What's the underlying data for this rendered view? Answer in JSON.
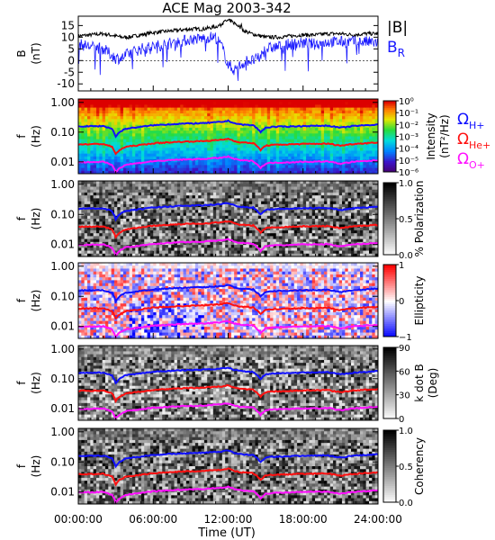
{
  "figure": {
    "title": "ACE Mag 2003-342",
    "x_label": "Time (UT)",
    "x_ticks": [
      "00:00:00",
      "06:00:00",
      "12:00:00",
      "18:00:00",
      "24:00:00"
    ],
    "x_tick_hours": [
      0,
      6,
      12,
      18,
      24
    ]
  },
  "legend_top": {
    "total": "|B|",
    "radial": "B",
    "radial_sub": "R"
  },
  "gyro_legend": [
    {
      "symbol": "Ω",
      "sub": "H+",
      "color": "#1010ff"
    },
    {
      "symbol": "Ω",
      "sub": "He+",
      "color": "#ff1010"
    },
    {
      "symbol": "Ω",
      "sub": "O+",
      "color": "#ff10ff"
    }
  ],
  "colors": {
    "total_b": "#000000",
    "radial_b": "#1a1aff",
    "h_plus": "#1010ff",
    "he_plus": "#ff1010",
    "o_plus": "#ff10ff"
  },
  "chart_data": [
    {
      "type": "line",
      "panel": "magnetic-field",
      "ylabel": "B",
      "ylabel_unit": "(nT)",
      "ylim": [
        -13,
        19
      ],
      "xlim": [
        0,
        24
      ],
      "y_ticks": [
        "15",
        "10",
        "5",
        "0",
        "-5",
        "-10"
      ],
      "y_tick_values": [
        15,
        10,
        5,
        0,
        -5,
        -10
      ],
      "series": [
        {
          "name": "|B|",
          "color": "#000000",
          "x": [
            0,
            1,
            2,
            2.5,
            3,
            3.5,
            4,
            5,
            6,
            7,
            8,
            9,
            10,
            10.5,
            11,
            11.5,
            11.8,
            12.2,
            12.8,
            13.2,
            13.6,
            14.2,
            15,
            16,
            17,
            18,
            19,
            20,
            21,
            22,
            23,
            24
          ],
          "y": [
            10.5,
            11,
            11.5,
            11,
            10.5,
            10,
            10,
            11,
            12,
            12.5,
            13,
            13.5,
            13.5,
            14,
            14.5,
            15.5,
            17,
            17,
            15,
            13,
            12,
            11,
            10,
            10,
            10.5,
            11,
            11,
            11.5,
            11.5,
            11,
            11.5,
            11.5
          ]
        },
        {
          "name": "B_R",
          "color": "#1a1aff",
          "x": [
            0,
            1,
            2,
            2.5,
            3,
            3.5,
            4,
            5,
            6,
            7,
            8,
            9,
            10,
            10.5,
            11,
            11.5,
            12,
            12.5,
            13,
            13.5,
            14,
            14.5,
            15,
            16,
            17,
            18,
            19,
            20,
            21,
            22,
            23,
            24
          ],
          "y": [
            7,
            6,
            5,
            3,
            1,
            1,
            3,
            5,
            6,
            7,
            8,
            9,
            9.5,
            10,
            10,
            6,
            -2,
            -4,
            -2,
            0,
            0,
            1,
            5,
            6,
            7,
            7.5,
            7,
            8,
            8,
            8,
            8,
            7.5
          ]
        }
      ]
    },
    {
      "type": "heatmap",
      "panel": "intensity",
      "ylabel": "f",
      "ylabel_unit": "(Hz)",
      "yscale": "log",
      "ylim": [
        0.004,
        1.3
      ],
      "y_ticks": [
        "1.00",
        "0.10",
        "0.01"
      ],
      "y_tick_values": [
        1,
        0.1,
        0.01
      ],
      "colorbar_label": "Intensity",
      "colorbar_unit": "(nT²/Hz)",
      "colorbar_ticks": [
        "10⁰",
        "10⁻¹",
        "10⁻²",
        "10⁻³",
        "10⁻⁴",
        "10⁻⁵",
        "10⁻⁶"
      ],
      "colorbar_tick_values": [
        0,
        -1,
        -2,
        -3,
        -4,
        -5,
        -6
      ],
      "colormap": "rainbow"
    },
    {
      "type": "heatmap",
      "panel": "polarization",
      "ylabel": "f",
      "ylabel_unit": "(Hz)",
      "yscale": "log",
      "y_ticks": [
        "1.00",
        "0.10",
        "0.01"
      ],
      "y_tick_values": [
        1,
        0.1,
        0.01
      ],
      "colorbar_label": "% Polarization",
      "colorbar_ticks": [
        "1.0",
        "0.5",
        "0.0"
      ],
      "colorbar_tick_values": [
        1,
        0.5,
        0
      ],
      "colormap": "gray"
    },
    {
      "type": "heatmap",
      "panel": "ellipticity",
      "ylabel": "f",
      "ylabel_unit": "(Hz)",
      "yscale": "log",
      "y_ticks": [
        "1.00",
        "0.10",
        "0.01"
      ],
      "y_tick_values": [
        1,
        0.1,
        0.01
      ],
      "colorbar_label": "Ellipticity",
      "colorbar_ticks": [
        "1",
        "0",
        "−1"
      ],
      "colorbar_tick_values": [
        1,
        0,
        -1
      ],
      "colormap": "blue-white-red"
    },
    {
      "type": "heatmap",
      "panel": "k-dot-b",
      "ylabel": "f",
      "ylabel_unit": "(Hz)",
      "yscale": "log",
      "y_ticks": [
        "1.00",
        "0.10",
        "0.01"
      ],
      "y_tick_values": [
        1,
        0.1,
        0.01
      ],
      "colorbar_label": "k dot B",
      "colorbar_unit": "(Deg)",
      "colorbar_ticks": [
        "90",
        "60",
        "30",
        "0"
      ],
      "colorbar_tick_values": [
        90,
        60,
        30,
        0
      ],
      "colormap": "gray"
    },
    {
      "type": "heatmap",
      "panel": "coherency",
      "ylabel": "f",
      "ylabel_unit": "(Hz)",
      "yscale": "log",
      "y_ticks": [
        "1.00",
        "0.10",
        "0.01"
      ],
      "y_tick_values": [
        1,
        0.1,
        0.01
      ],
      "colorbar_label": "Coherency",
      "colorbar_ticks": [
        "1.0",
        "0.5",
        "0.0"
      ],
      "colorbar_tick_values": [
        1,
        0.5,
        0
      ],
      "colormap": "gray"
    }
  ],
  "gyrofrequency_lines": {
    "x": [
      0,
      2,
      2.7,
      3.0,
      3.3,
      3.8,
      5,
      6,
      8,
      10,
      11.5,
      12,
      12.5,
      13,
      14,
      14.6,
      15,
      15.5,
      17,
      18,
      20,
      21,
      22,
      24
    ],
    "h_plus": [
      0.155,
      0.16,
      0.13,
      0.07,
      0.1,
      0.13,
      0.15,
      0.17,
      0.19,
      0.2,
      0.22,
      0.24,
      0.2,
      0.18,
      0.17,
      0.1,
      0.14,
      0.15,
      0.155,
      0.16,
      0.165,
      0.14,
      0.16,
      0.18
    ],
    "he_plus": [
      0.039,
      0.04,
      0.032,
      0.018,
      0.025,
      0.032,
      0.037,
      0.042,
      0.047,
      0.05,
      0.055,
      0.06,
      0.05,
      0.045,
      0.043,
      0.025,
      0.035,
      0.037,
      0.039,
      0.04,
      0.041,
      0.035,
      0.04,
      0.045
    ],
    "o_plus": [
      0.0097,
      0.01,
      0.008,
      0.0045,
      0.0062,
      0.008,
      0.0093,
      0.0105,
      0.0118,
      0.0125,
      0.0138,
      0.015,
      0.0125,
      0.0113,
      0.0107,
      0.0062,
      0.0087,
      0.0093,
      0.0097,
      0.01,
      0.0103,
      0.0087,
      0.01,
      0.0113
    ]
  }
}
